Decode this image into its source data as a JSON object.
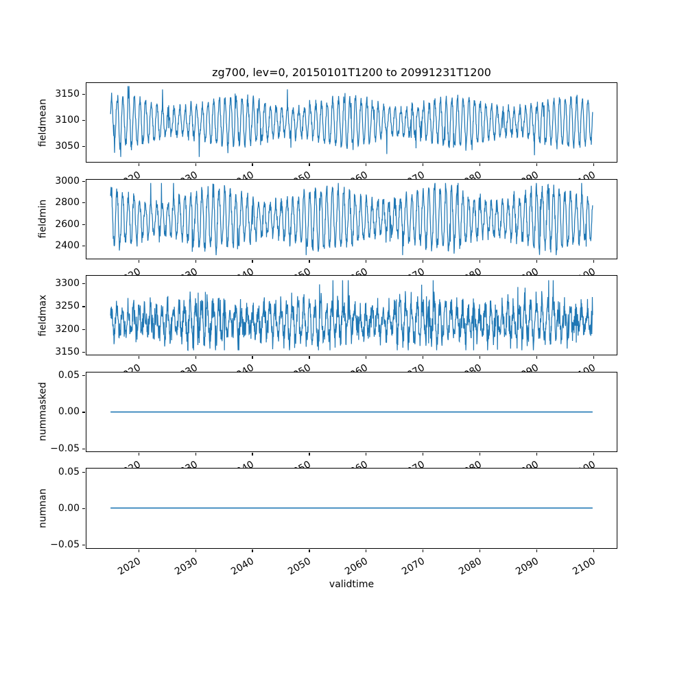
{
  "title": "zg700, lev=0, 20150101T1200 to 20991231T1200",
  "line_color": "#1f77b4",
  "chart_data": {
    "type": "line",
    "title": "zg700, lev=0, 20150101T1200 to 20991231T1200",
    "xlabel": "validtime",
    "x_range": [
      2015.0,
      2100.0
    ],
    "xlim": [
      2010.75,
      2104.25
    ],
    "xtick_rotation_deg": 30,
    "grid": false,
    "legend": "none",
    "xticks": [
      {
        "value": 2020,
        "label": "2020"
      },
      {
        "value": 2030,
        "label": "2030"
      },
      {
        "value": 2040,
        "label": "2040"
      },
      {
        "value": 2050,
        "label": "2050"
      },
      {
        "value": 2060,
        "label": "2060"
      },
      {
        "value": 2070,
        "label": "2070"
      },
      {
        "value": 2080,
        "label": "2080"
      },
      {
        "value": 2090,
        "label": "2090"
      },
      {
        "value": 2100,
        "label": "2100"
      }
    ],
    "subplots": [
      {
        "ylabel": "fieldmean",
        "ylim": [
          3018,
          3172
        ],
        "yticks": [
          {
            "value": 3050,
            "label": "3050"
          },
          {
            "value": 3100,
            "label": "3100"
          },
          {
            "value": 3150,
            "label": "3150"
          }
        ],
        "series": {
          "kind": "seasonal_noise",
          "name": "fieldmean",
          "mean": 3096,
          "seasonal_amplitude": 36,
          "noise_amplitude": 12,
          "annual_cycles": 85,
          "approx_min": 3028,
          "approx_max": 3166,
          "seed": 1
        }
      },
      {
        "ylabel": "fieldmin",
        "ylim": [
          2276,
          3019
        ],
        "yticks": [
          {
            "value": 2400,
            "label": "2400"
          },
          {
            "value": 2600,
            "label": "2600"
          },
          {
            "value": 2800,
            "label": "2800"
          },
          {
            "value": 3000,
            "label": "3000"
          }
        ],
        "series": {
          "kind": "seasonal_noise",
          "name": "fieldmin",
          "mean": 2652,
          "seasonal_amplitude": 215,
          "noise_amplitude": 80,
          "annual_cycles": 85,
          "approx_min": 2310,
          "approx_max": 2988,
          "seed": 2
        }
      },
      {
        "ylabel": "fieldmax",
        "ylim": [
          3142,
          3318
        ],
        "yticks": [
          {
            "value": 3150,
            "label": "3150"
          },
          {
            "value": 3200,
            "label": "3200"
          },
          {
            "value": 3250,
            "label": "3250"
          },
          {
            "value": 3300,
            "label": "3300"
          }
        ],
        "series": {
          "kind": "seasonal_noise",
          "name": "fieldmax",
          "mean": 3216,
          "seasonal_amplitude": 32,
          "noise_amplitude": 36,
          "annual_cycles": 85,
          "approx_min": 3152,
          "approx_max": 3308,
          "seed": 3
        }
      },
      {
        "ylabel": "nummasked",
        "ylim": [
          -0.055,
          0.055
        ],
        "yticks": [
          {
            "value": -0.05,
            "label": "−0.05"
          },
          {
            "value": 0.0,
            "label": "0.00"
          },
          {
            "value": 0.05,
            "label": "0.05"
          }
        ],
        "series": {
          "kind": "constant",
          "name": "nummasked",
          "value": 0.0
        }
      },
      {
        "ylabel": "numnan",
        "ylim": [
          -0.055,
          0.055
        ],
        "yticks": [
          {
            "value": -0.05,
            "label": "−0.05"
          },
          {
            "value": 0.0,
            "label": "0.00"
          },
          {
            "value": 0.05,
            "label": "0.05"
          }
        ],
        "series": {
          "kind": "constant",
          "name": "numnan",
          "value": 0.0
        }
      }
    ]
  }
}
